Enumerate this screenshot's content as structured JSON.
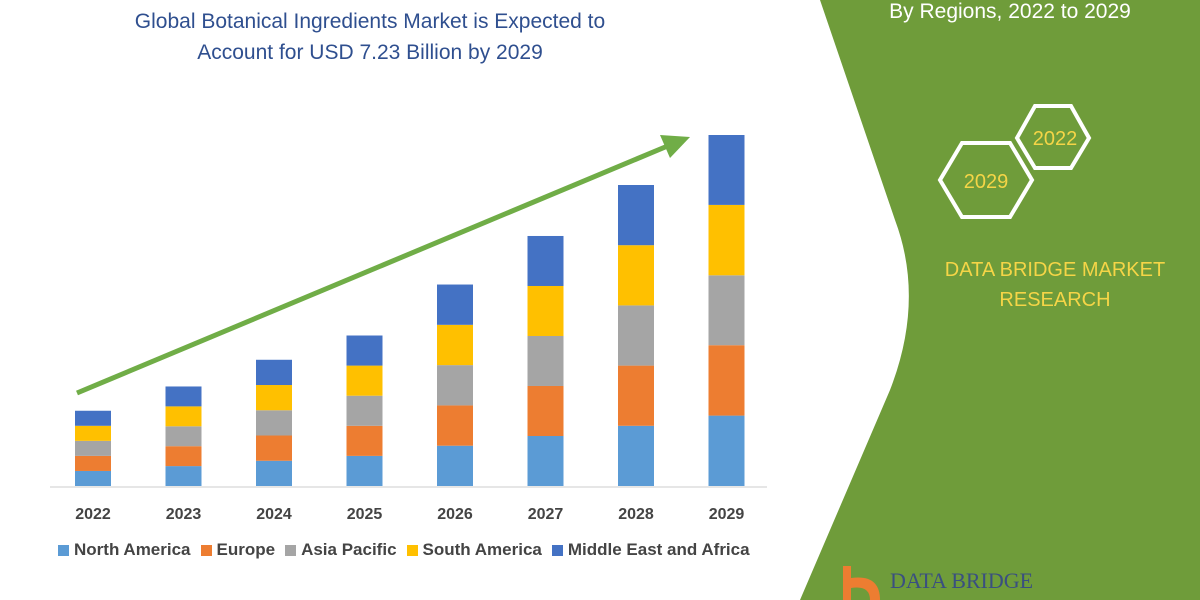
{
  "title_line1": "Global Botanical Ingredients Market is Expected to",
  "title_line2": "Account for USD 7.23 Billion by 2029",
  "panel": {
    "subtitle": "By Regions, 2022 to 2029",
    "hex_2022": "2022",
    "hex_2029": "2029",
    "brand_line1": "DATA BRIDGE MARKET",
    "brand_line2": "RESEARCH",
    "logo_text": "DATA BRIDGE",
    "panel_color": "#6f9c3a",
    "brand_color": "#f5d547"
  },
  "chart_data": {
    "type": "bar",
    "stacked": true,
    "title": "Global Botanical Ingredients Market is Expected to Account for USD 7.23 Billion by 2029",
    "categories": [
      "2022",
      "2023",
      "2024",
      "2025",
      "2026",
      "2027",
      "2028",
      "2029"
    ],
    "series": [
      {
        "name": "North America",
        "color": "#5b9bd5",
        "values": [
          0.31,
          0.41,
          0.52,
          0.62,
          0.83,
          1.03,
          1.24,
          1.45
        ]
      },
      {
        "name": "Europe",
        "color": "#ed7d31",
        "values": [
          0.31,
          0.41,
          0.52,
          0.62,
          0.83,
          1.03,
          1.24,
          1.45
        ]
      },
      {
        "name": "Asia Pacific",
        "color": "#a5a5a5",
        "values": [
          0.31,
          0.41,
          0.52,
          0.62,
          0.83,
          1.03,
          1.24,
          1.44
        ]
      },
      {
        "name": "South America",
        "color": "#ffc000",
        "values": [
          0.31,
          0.41,
          0.52,
          0.62,
          0.83,
          1.03,
          1.24,
          1.45
        ]
      },
      {
        "name": "Middle East and Africa",
        "color": "#4472c4",
        "values": [
          0.31,
          0.41,
          0.52,
          0.62,
          0.83,
          1.03,
          1.24,
          1.44
        ]
      }
    ],
    "ylim": [
      0,
      7.23
    ],
    "y_axis_shown": false,
    "grid": false,
    "legend_position": "bottom",
    "trend_arrow_color": "#70ad47"
  }
}
